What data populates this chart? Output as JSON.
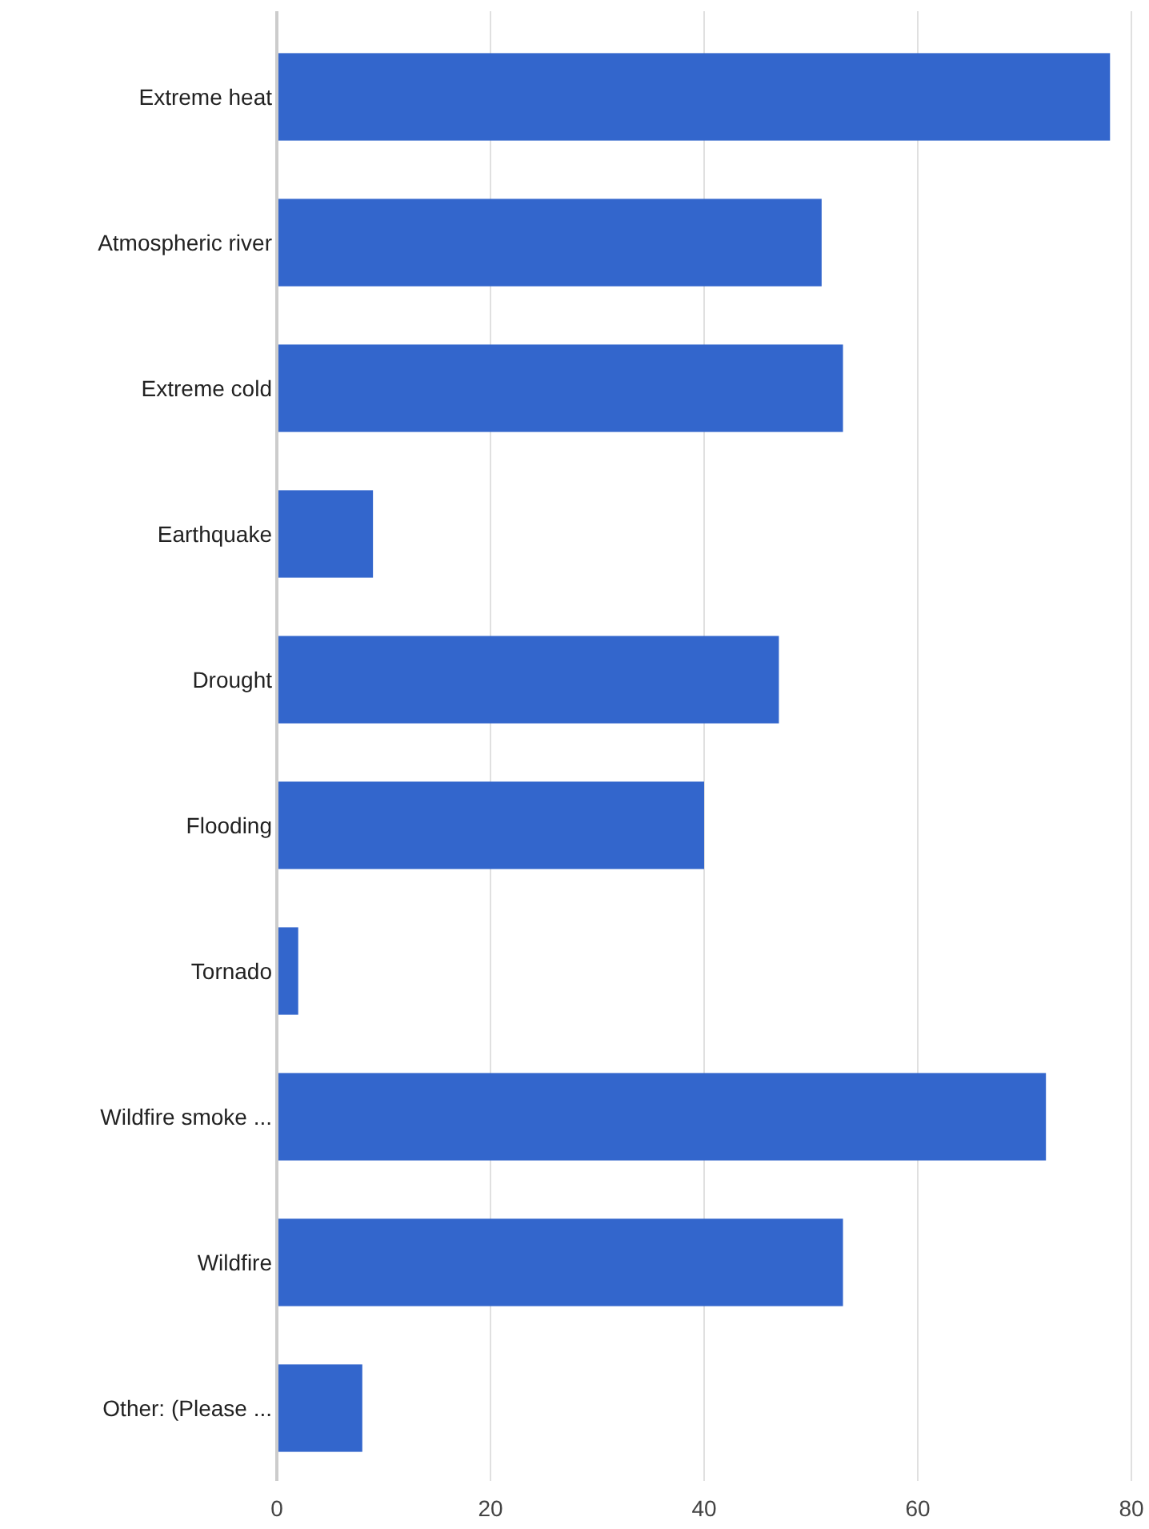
{
  "chart_data": {
    "type": "bar",
    "orientation": "horizontal",
    "categories": [
      "Extreme heat",
      "Atmospheric river",
      "Extreme cold",
      "Earthquake",
      "Drought",
      "Flooding",
      "Tornado",
      "Wildfire smoke ...",
      "Wildfire",
      "Other: (Please ..."
    ],
    "values": [
      78,
      51,
      53,
      9,
      47,
      40,
      2,
      72,
      53,
      8
    ],
    "color": "#3366cc",
    "xlim": [
      0,
      80
    ],
    "xticks": [
      0,
      20,
      40,
      60,
      80
    ],
    "grid": "x"
  }
}
